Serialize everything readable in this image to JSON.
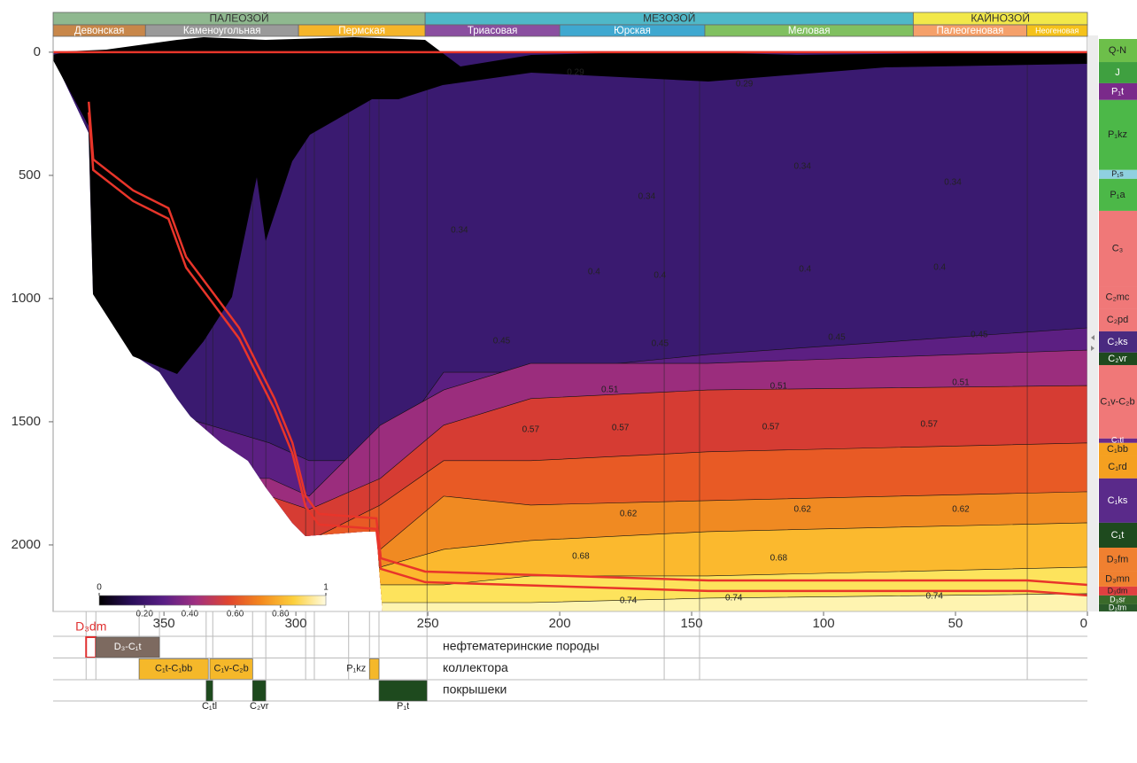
{
  "chart_data": {
    "type": "burial-history",
    "xlim": [
      392,
      0
    ],
    "ylim": [
      2270,
      -68
    ],
    "xticks": [
      350,
      300,
      250,
      200,
      150,
      100,
      50,
      0
    ],
    "yticks": [
      0,
      500,
      1000,
      1500,
      2000
    ],
    "eras": [
      {
        "label": "ПАЛЕОЗОЙ",
        "start": 392,
        "end": 251,
        "color": "#8fb88f"
      },
      {
        "label": "МЕЗОЗОЙ",
        "start": 251,
        "end": 66,
        "color": "#4fb8c8"
      },
      {
        "label": "КАЙНОЗОЙ",
        "start": 66,
        "end": 0,
        "color": "#f2e84a"
      }
    ],
    "periods": [
      {
        "label": "Девонская",
        "start": 392,
        "end": 357,
        "color": "#c8874a"
      },
      {
        "label": "Каменоугольная",
        "start": 357,
        "end": 299,
        "color": "#9a9a9a"
      },
      {
        "label": "Пермская",
        "start": 299,
        "end": 251,
        "color": "#f5b52a"
      },
      {
        "label": "Триасовая",
        "start": 251,
        "end": 200,
        "color": "#8a4fa0"
      },
      {
        "label": "Юрская",
        "start": 200,
        "end": 145,
        "color": "#3fa8d0"
      },
      {
        "label": "Меловая",
        "start": 145,
        "end": 66,
        "color": "#80c060"
      },
      {
        "label": "Палеогеновая",
        "start": 66,
        "end": 23,
        "color": "#f5a06a"
      },
      {
        "label": "Неогеновая",
        "start": 23,
        "end": 0,
        "color": "#f5c21a"
      }
    ],
    "maturity_layers": [
      {
        "color": "#5c1f82",
        "x": [
          392,
          344,
          310,
          295,
          268,
          244,
          211,
          144,
          0
        ],
        "values": [
          1478,
          1478,
          1586,
          1658,
          1658,
          1299,
          1299,
          1227,
          1119
        ]
      },
      {
        "color": "#9b2d7d",
        "x": [
          392,
          344,
          310,
          295,
          268,
          244,
          211,
          144,
          0
        ],
        "values": [
          1730,
          1730,
          1730,
          1802,
          1514,
          1371,
          1263,
          1263,
          1209
        ]
      },
      {
        "color": "#d63c33",
        "x": [
          392,
          344,
          310,
          295,
          268,
          244,
          211,
          144,
          0
        ],
        "values": [
          1910,
          1910,
          1802,
          1856,
          1730,
          1514,
          1406,
          1371,
          1353
        ]
      },
      {
        "color": "#e85a25",
        "x": [
          392,
          344,
          310,
          295,
          268,
          244,
          211,
          144,
          0
        ],
        "values": [
          2090,
          2090,
          1946,
          1982,
          1838,
          1658,
          1658,
          1622,
          1586
        ]
      },
      {
        "color": "#f08a22",
        "x": [
          392,
          344,
          310,
          295,
          268,
          244,
          211,
          144,
          0
        ],
        "values": [
          2270,
          2270,
          2090,
          2126,
          2018,
          1802,
          1838,
          1820,
          1784
        ]
      },
      {
        "color": "#fbb92e",
        "x": [
          392,
          344,
          310,
          295,
          268,
          244,
          211,
          144,
          0
        ],
        "values": [
          2270,
          2270,
          2270,
          2270,
          2090,
          2018,
          1982,
          1946,
          1910
        ]
      },
      {
        "color": "#fde35c",
        "x": [
          392,
          344,
          310,
          295,
          268,
          244,
          211,
          144,
          0
        ],
        "values": [
          2270,
          2270,
          2270,
          2270,
          2162,
          2162,
          2126,
          2126,
          2090
        ]
      },
      {
        "color": "#fef4b0",
        "x": [
          392,
          344,
          310,
          295,
          268,
          244,
          211,
          144,
          0
        ],
        "values": [
          2270,
          2270,
          2270,
          2270,
          2234,
          2234,
          2234,
          2216,
          2198
        ]
      }
    ],
    "horizons": [
      {
        "color": "#e8352a",
        "x": [
          392,
          0
        ],
        "values": [
          0,
          0
        ]
      },
      {
        "color": "#e8352a",
        "x": [
          378.5,
          376.8,
          361.7,
          348.3,
          341.6,
          331.5,
          321.5,
          314.8,
          308.1,
          301.3,
          296.3,
          291.3,
          269.5,
          267.8,
          251,
          143.6,
          22.8,
          0
        ],
        "values": [
          201,
          435,
          561,
          633,
          831,
          975,
          1119,
          1263,
          1406,
          1586,
          1802,
          1874,
          1892,
          2054,
          2108,
          2144,
          2144,
          2162
        ]
      },
      {
        "color": "#e8352a",
        "x": [
          378.5,
          376.8,
          361.7,
          348.3,
          341.6,
          331.5,
          321.5,
          314.8,
          308.1,
          301.3,
          296.3,
          291.3,
          269.5,
          267.8,
          251,
          143.6,
          22.8,
          0
        ],
        "values": [
          244,
          478,
          604,
          676,
          874,
          1018,
          1162,
          1306,
          1449,
          1629,
          1845,
          1917,
          1935,
          2097,
          2151,
          2187,
          2187,
          2205
        ]
      }
    ],
    "time_lines": [
      379.5,
      375.8,
      359.4,
      351.7,
      334,
      331.5,
      316.4,
      311.4,
      296.3,
      293,
      280,
      272.1,
      268.5,
      250.3,
      160.4,
      147,
      22.8
    ],
    "contour_labels": [
      {
        "text": 0.29,
        "x": 194,
        "y": 83
      },
      {
        "text": 0.29,
        "x": 130,
        "y": 129
      },
      {
        "text": 0.34,
        "x": 238,
        "y": 723
      },
      {
        "text": 0.34,
        "x": 167,
        "y": 586
      },
      {
        "text": 0.34,
        "x": 108,
        "y": 464
      },
      {
        "text": 0.34,
        "x": 51,
        "y": 529
      },
      {
        "text": 0.4,
        "x": 187,
        "y": 892
      },
      {
        "text": 0.4,
        "x": 162,
        "y": 906
      },
      {
        "text": 0.4,
        "x": 107,
        "y": 881
      },
      {
        "text": 0.4,
        "x": 56,
        "y": 874
      },
      {
        "text": 0.45,
        "x": 222,
        "y": 1173
      },
      {
        "text": 0.45,
        "x": 162,
        "y": 1183
      },
      {
        "text": 0.45,
        "x": 95,
        "y": 1158
      },
      {
        "text": 0.45,
        "x": 41,
        "y": 1147
      },
      {
        "text": 0.51,
        "x": 181,
        "y": 1371
      },
      {
        "text": 0.51,
        "x": 117,
        "y": 1356
      },
      {
        "text": 0.51,
        "x": 48,
        "y": 1342
      },
      {
        "text": 0.57,
        "x": 211,
        "y": 1532
      },
      {
        "text": 0.57,
        "x": 177,
        "y": 1525
      },
      {
        "text": 0.57,
        "x": 120,
        "y": 1522
      },
      {
        "text": 0.57,
        "x": 60,
        "y": 1511
      },
      {
        "text": 0.62,
        "x": 174,
        "y": 1874
      },
      {
        "text": 0.62,
        "x": 108,
        "y": 1856
      },
      {
        "text": 0.62,
        "x": 48,
        "y": 1856
      },
      {
        "text": 0.68,
        "x": 192,
        "y": 2047
      },
      {
        "text": 0.68,
        "x": 117,
        "y": 2054
      },
      {
        "text": 0.74,
        "x": 174,
        "y": 2227
      },
      {
        "text": 0.74,
        "x": 134,
        "y": 2216
      },
      {
        "text": 0.74,
        "x": 58,
        "y": 2209
      }
    ],
    "colorbar": {
      "colors": [
        "#000000",
        "#2a0e5a",
        "#5a1f86",
        "#a03080",
        "#e0452e",
        "#f4891e",
        "#fcd03c",
        "#fffbe0"
      ],
      "range_ticks": [
        0,
        1
      ],
      "ticks": [
        {
          "value": 0.2,
          "label": "0.20"
        },
        {
          "value": 0.4,
          "label": "0.40"
        },
        {
          "value": 0.6,
          "label": "0.60"
        },
        {
          "value": 0.8,
          "label": "0.80"
        }
      ]
    },
    "formations": [
      {
        "label": "Q-N",
        "top": -54,
        "color": "#6dbf4a"
      },
      {
        "label": "J",
        "top": 40,
        "color": "#3fa040"
      },
      {
        "label": "P₁t",
        "top": 126,
        "color": "#7a2a8a"
      },
      {
        "label": "P₁kz",
        "top": 194,
        "color": "#4cb848"
      },
      {
        "label": "P₁s",
        "top": 478,
        "color": "#8fd0e0"
      },
      {
        "label": "P₁a",
        "top": 514,
        "color": "#4cb848"
      },
      {
        "label": "C₃",
        "top": 644,
        "color": "#f07878"
      },
      {
        "label": "C₂mc",
        "top": 950,
        "color": "#f07878"
      },
      {
        "label": "C₂pd",
        "top": 1040,
        "color": "#f07878"
      },
      {
        "label": "C₂ks",
        "top": 1133,
        "color": "#4a2a80"
      },
      {
        "label": "C₂vr",
        "top": 1219,
        "color": "#1e4a1e"
      },
      {
        "label": "C₁v-C₂b",
        "top": 1270,
        "color": "#f07878"
      },
      {
        "label": "C₁tl",
        "top": 1568,
        "color": "#6a2a8a"
      },
      {
        "label": "C₁bb",
        "top": 1586,
        "color": "#f5a020"
      },
      {
        "label": "C₁rd",
        "top": 1637,
        "color": "#f5a020"
      },
      {
        "label": "C₁ks",
        "top": 1730,
        "color": "#5a2a8a"
      },
      {
        "label": "C₁t",
        "top": 1910,
        "color": "#1e4a1e"
      },
      {
        "label": "D₃fm",
        "top": 2011,
        "color": "#f08030"
      },
      {
        "label": "D₃mn",
        "top": 2108,
        "color": "#f08030"
      },
      {
        "label": "D₃dm",
        "top": 2169,
        "color": "#e04040"
      },
      {
        "label": "D₃sr",
        "top": 2205,
        "color": "#3a6a2a"
      },
      {
        "label": "D₃tm",
        "top": 2241,
        "color": "#2a5a2a"
      }
    ],
    "events": [
      {
        "label": "нефтематеринские породы",
        "items": [
          {
            "label": "D₃dm",
            "start": 379.5,
            "end": 375.8,
            "color": "#e03030",
            "outline": true,
            "label_pos": "above"
          },
          {
            "label": "D₃-C₁t",
            "start": 375.8,
            "end": 351.7,
            "color": "#7d6a60",
            "label_pos": "inside"
          }
        ]
      },
      {
        "label": "коллектора",
        "items": [
          {
            "label": "C₁t-C₁bb",
            "start": 359.4,
            "end": 333.2,
            "color": "#f5b82a",
            "label_pos": "inside"
          },
          {
            "label": "C₁v-C₂b",
            "start": 332.6,
            "end": 316.4,
            "color": "#f5b82a",
            "label_pos": "inside"
          },
          {
            "label": "P₁kz",
            "start": 272.1,
            "end": 268.5,
            "color": "#f5b82a",
            "label_pos": "left"
          }
        ]
      },
      {
        "label": "покрышеки",
        "items": [
          {
            "label": "C₁tl",
            "start": 334,
            "end": 331.5,
            "color": "#1e4a1e",
            "label_pos": "below"
          },
          {
            "label": "C₂vr",
            "start": 316.4,
            "end": 311.4,
            "color": "#1e4a1e",
            "label_pos": "below"
          },
          {
            "label": "P₁t",
            "start": 268.5,
            "end": 250.3,
            "color": "#1e4a1e",
            "label_pos": "below"
          }
        ]
      }
    ]
  }
}
